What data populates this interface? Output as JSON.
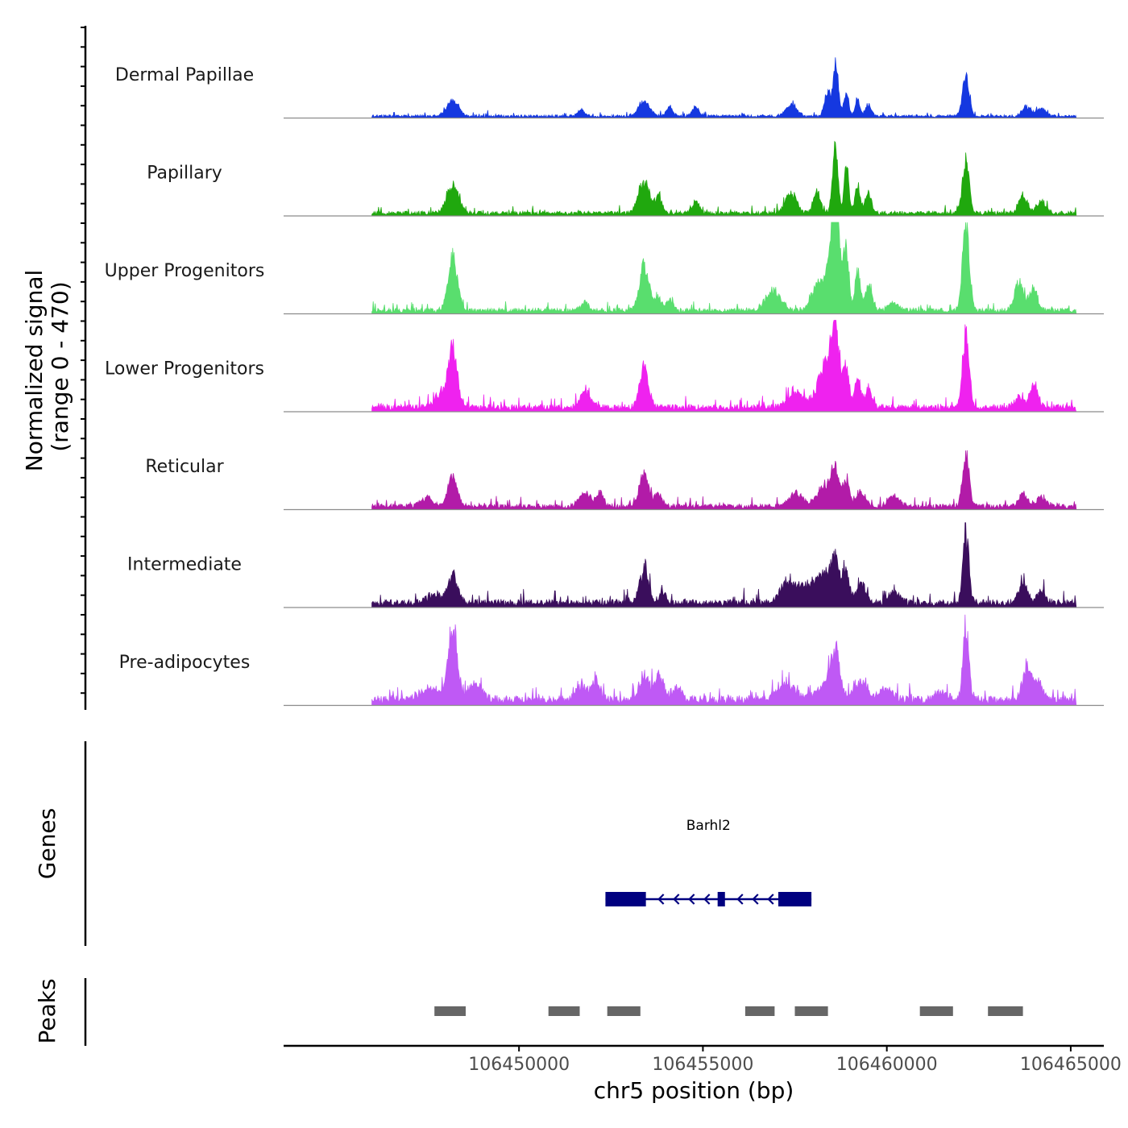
{
  "chart_data": {
    "type": "area",
    "title": "",
    "ylabel": "Normalized signal",
    "ylabel_range": "(range 0 - 470)",
    "y_range": [
      0,
      470
    ],
    "xlabel": "chr5 position (bp)",
    "x_range": [
      106443600,
      106465900
    ],
    "data_span": [
      106446000,
      106465150
    ],
    "x_ticks": [
      106450000,
      106455000,
      106460000,
      106465000
    ],
    "x_tick_labels": [
      "106450000",
      "106455000",
      "106460000",
      "106465000"
    ],
    "tracks": [
      {
        "name": "Dermal Papillae",
        "color": "#1538E0",
        "peaks": [
          [
            106448200,
            150,
            35
          ],
          [
            106451700,
            100,
            12
          ],
          [
            106453400,
            150,
            30
          ],
          [
            106454100,
            90,
            18
          ],
          [
            106454800,
            90,
            20
          ],
          [
            106457400,
            150,
            25
          ],
          [
            106458400,
            90,
            50
          ],
          [
            106458600,
            60,
            75
          ],
          [
            106458650,
            70,
            40
          ],
          [
            106458900,
            60,
            55
          ],
          [
            106459200,
            60,
            35
          ],
          [
            106459500,
            80,
            25
          ],
          [
            106462150,
            90,
            85
          ],
          [
            106463800,
            120,
            20
          ],
          [
            106464200,
            120,
            15
          ]
        ],
        "base": 4
      },
      {
        "name": "Papillary",
        "color": "#20A80E",
        "peaks": [
          [
            106448200,
            150,
            60
          ],
          [
            106453400,
            150,
            65
          ],
          [
            106453800,
            90,
            35
          ],
          [
            106454800,
            90,
            25
          ],
          [
            106457400,
            150,
            40
          ],
          [
            106458100,
            90,
            45
          ],
          [
            106458600,
            70,
            150
          ],
          [
            106458900,
            60,
            100
          ],
          [
            106459200,
            70,
            55
          ],
          [
            106459500,
            90,
            40
          ],
          [
            106462150,
            90,
            110
          ],
          [
            106463700,
            120,
            35
          ],
          [
            106464200,
            120,
            25
          ]
        ],
        "base": 6
      },
      {
        "name": "Upper Progenitors",
        "color": "#59DE6E",
        "peaks": [
          [
            106448200,
            130,
            110
          ],
          [
            106451800,
            120,
            15
          ],
          [
            106453400,
            130,
            95
          ],
          [
            106453800,
            100,
            25
          ],
          [
            106454100,
            90,
            20
          ],
          [
            106456900,
            200,
            40
          ],
          [
            106458100,
            150,
            50
          ],
          [
            106458600,
            110,
            200
          ],
          [
            106458500,
            200,
            70
          ],
          [
            106458900,
            70,
            120
          ],
          [
            106459200,
            70,
            80
          ],
          [
            106459500,
            100,
            50
          ],
          [
            106460200,
            150,
            15
          ],
          [
            106462150,
            90,
            180
          ],
          [
            106463600,
            120,
            60
          ],
          [
            106464000,
            100,
            45
          ]
        ],
        "base": 7
      },
      {
        "name": "Lower Progenitors",
        "color": "#EF22EF",
        "peaks": [
          [
            106448200,
            120,
            120
          ],
          [
            106447900,
            200,
            25
          ],
          [
            106451800,
            150,
            30
          ],
          [
            106453400,
            120,
            85
          ],
          [
            106457500,
            200,
            35
          ],
          [
            106458300,
            200,
            80
          ],
          [
            106458600,
            120,
            145
          ],
          [
            106458900,
            80,
            75
          ],
          [
            106459200,
            80,
            55
          ],
          [
            106459500,
            100,
            40
          ],
          [
            106462150,
            90,
            150
          ],
          [
            106464000,
            100,
            50
          ],
          [
            106463600,
            120,
            20
          ]
        ],
        "base": 9
      },
      {
        "name": "Reticular",
        "color": "#B21BA8",
        "peaks": [
          [
            106448200,
            130,
            60
          ],
          [
            106447500,
            150,
            20
          ],
          [
            106451800,
            150,
            30
          ],
          [
            106452200,
            100,
            25
          ],
          [
            106453400,
            130,
            65
          ],
          [
            106453800,
            100,
            25
          ],
          [
            106457500,
            200,
            25
          ],
          [
            106458300,
            200,
            40
          ],
          [
            106458600,
            110,
            70
          ],
          [
            106458900,
            80,
            50
          ],
          [
            106459300,
            120,
            30
          ],
          [
            106460200,
            150,
            20
          ],
          [
            106462150,
            90,
            105
          ],
          [
            106463700,
            120,
            25
          ],
          [
            106464200,
            120,
            20
          ]
        ],
        "base": 7
      },
      {
        "name": "Intermediate",
        "color": "#3A0E5C",
        "peaks": [
          [
            106448200,
            130,
            55
          ],
          [
            106447700,
            200,
            18
          ],
          [
            106453400,
            120,
            70
          ],
          [
            106453900,
            100,
            20
          ],
          [
            106457300,
            200,
            40
          ],
          [
            106457700,
            150,
            30
          ],
          [
            106458000,
            150,
            25
          ],
          [
            106458600,
            110,
            80
          ],
          [
            106458300,
            180,
            55
          ],
          [
            106458900,
            90,
            60
          ],
          [
            106459300,
            120,
            40
          ],
          [
            106460200,
            150,
            20
          ],
          [
            106462150,
            80,
            150
          ],
          [
            106463700,
            120,
            40
          ],
          [
            106464200,
            120,
            25
          ]
        ],
        "base": 10
      },
      {
        "name": "Pre-adipocytes",
        "color": "#BF59F5",
        "peaks": [
          [
            106448200,
            120,
            150
          ],
          [
            106447600,
            250,
            25
          ],
          [
            106448800,
            200,
            30
          ],
          [
            106451700,
            150,
            30
          ],
          [
            106452100,
            110,
            40
          ],
          [
            106453400,
            130,
            50
          ],
          [
            106453800,
            120,
            55
          ],
          [
            106454300,
            120,
            25
          ],
          [
            106457300,
            250,
            30
          ],
          [
            106458600,
            120,
            80
          ],
          [
            106458400,
            250,
            35
          ],
          [
            106459300,
            200,
            35
          ],
          [
            106460000,
            150,
            25
          ],
          [
            106461500,
            150,
            15
          ],
          [
            106462150,
            80,
            150
          ],
          [
            106463800,
            120,
            60
          ],
          [
            106464100,
            150,
            35
          ]
        ],
        "base": 12
      }
    ],
    "genes_track": {
      "title": "Genes",
      "gene_name": "Barhl2",
      "strand": "-",
      "color": "#000080",
      "span": [
        106452350,
        106457950
      ],
      "exons": [
        [
          106452350,
          106453450
        ],
        [
          106455400,
          106455600
        ],
        [
          106457050,
          106457950
        ]
      ]
    },
    "peaks_track": {
      "title": "Peaks",
      "color": "#666666",
      "regions": [
        [
          106447700,
          106448550
        ],
        [
          106450800,
          106451650
        ],
        [
          106452400,
          106453300
        ],
        [
          106456150,
          106456950
        ],
        [
          106457500,
          106458400
        ],
        [
          106460900,
          106461800
        ],
        [
          106462750,
          106463700
        ]
      ]
    }
  }
}
